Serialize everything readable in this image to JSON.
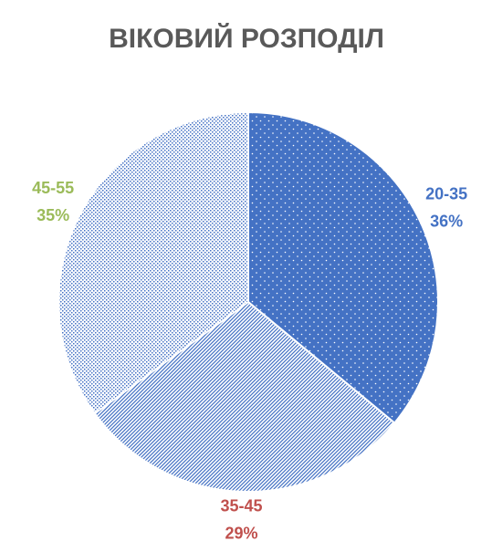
{
  "chart_data": {
    "type": "pie",
    "title": "ВІКОВИЙ РОЗПОДІЛ",
    "categories": [
      "20-35",
      "35-45",
      "45-55"
    ],
    "values": [
      36,
      29,
      35
    ],
    "value_labels": [
      "36%",
      "29%",
      "35%"
    ],
    "colors": [
      "#4472c4",
      "#4472c4",
      "#4472c4"
    ],
    "patterns": [
      "dots",
      "diagonal",
      "crosshatch"
    ],
    "label_colors": [
      "#4472c4",
      "#c0504d",
      "#9bbb59"
    ]
  }
}
